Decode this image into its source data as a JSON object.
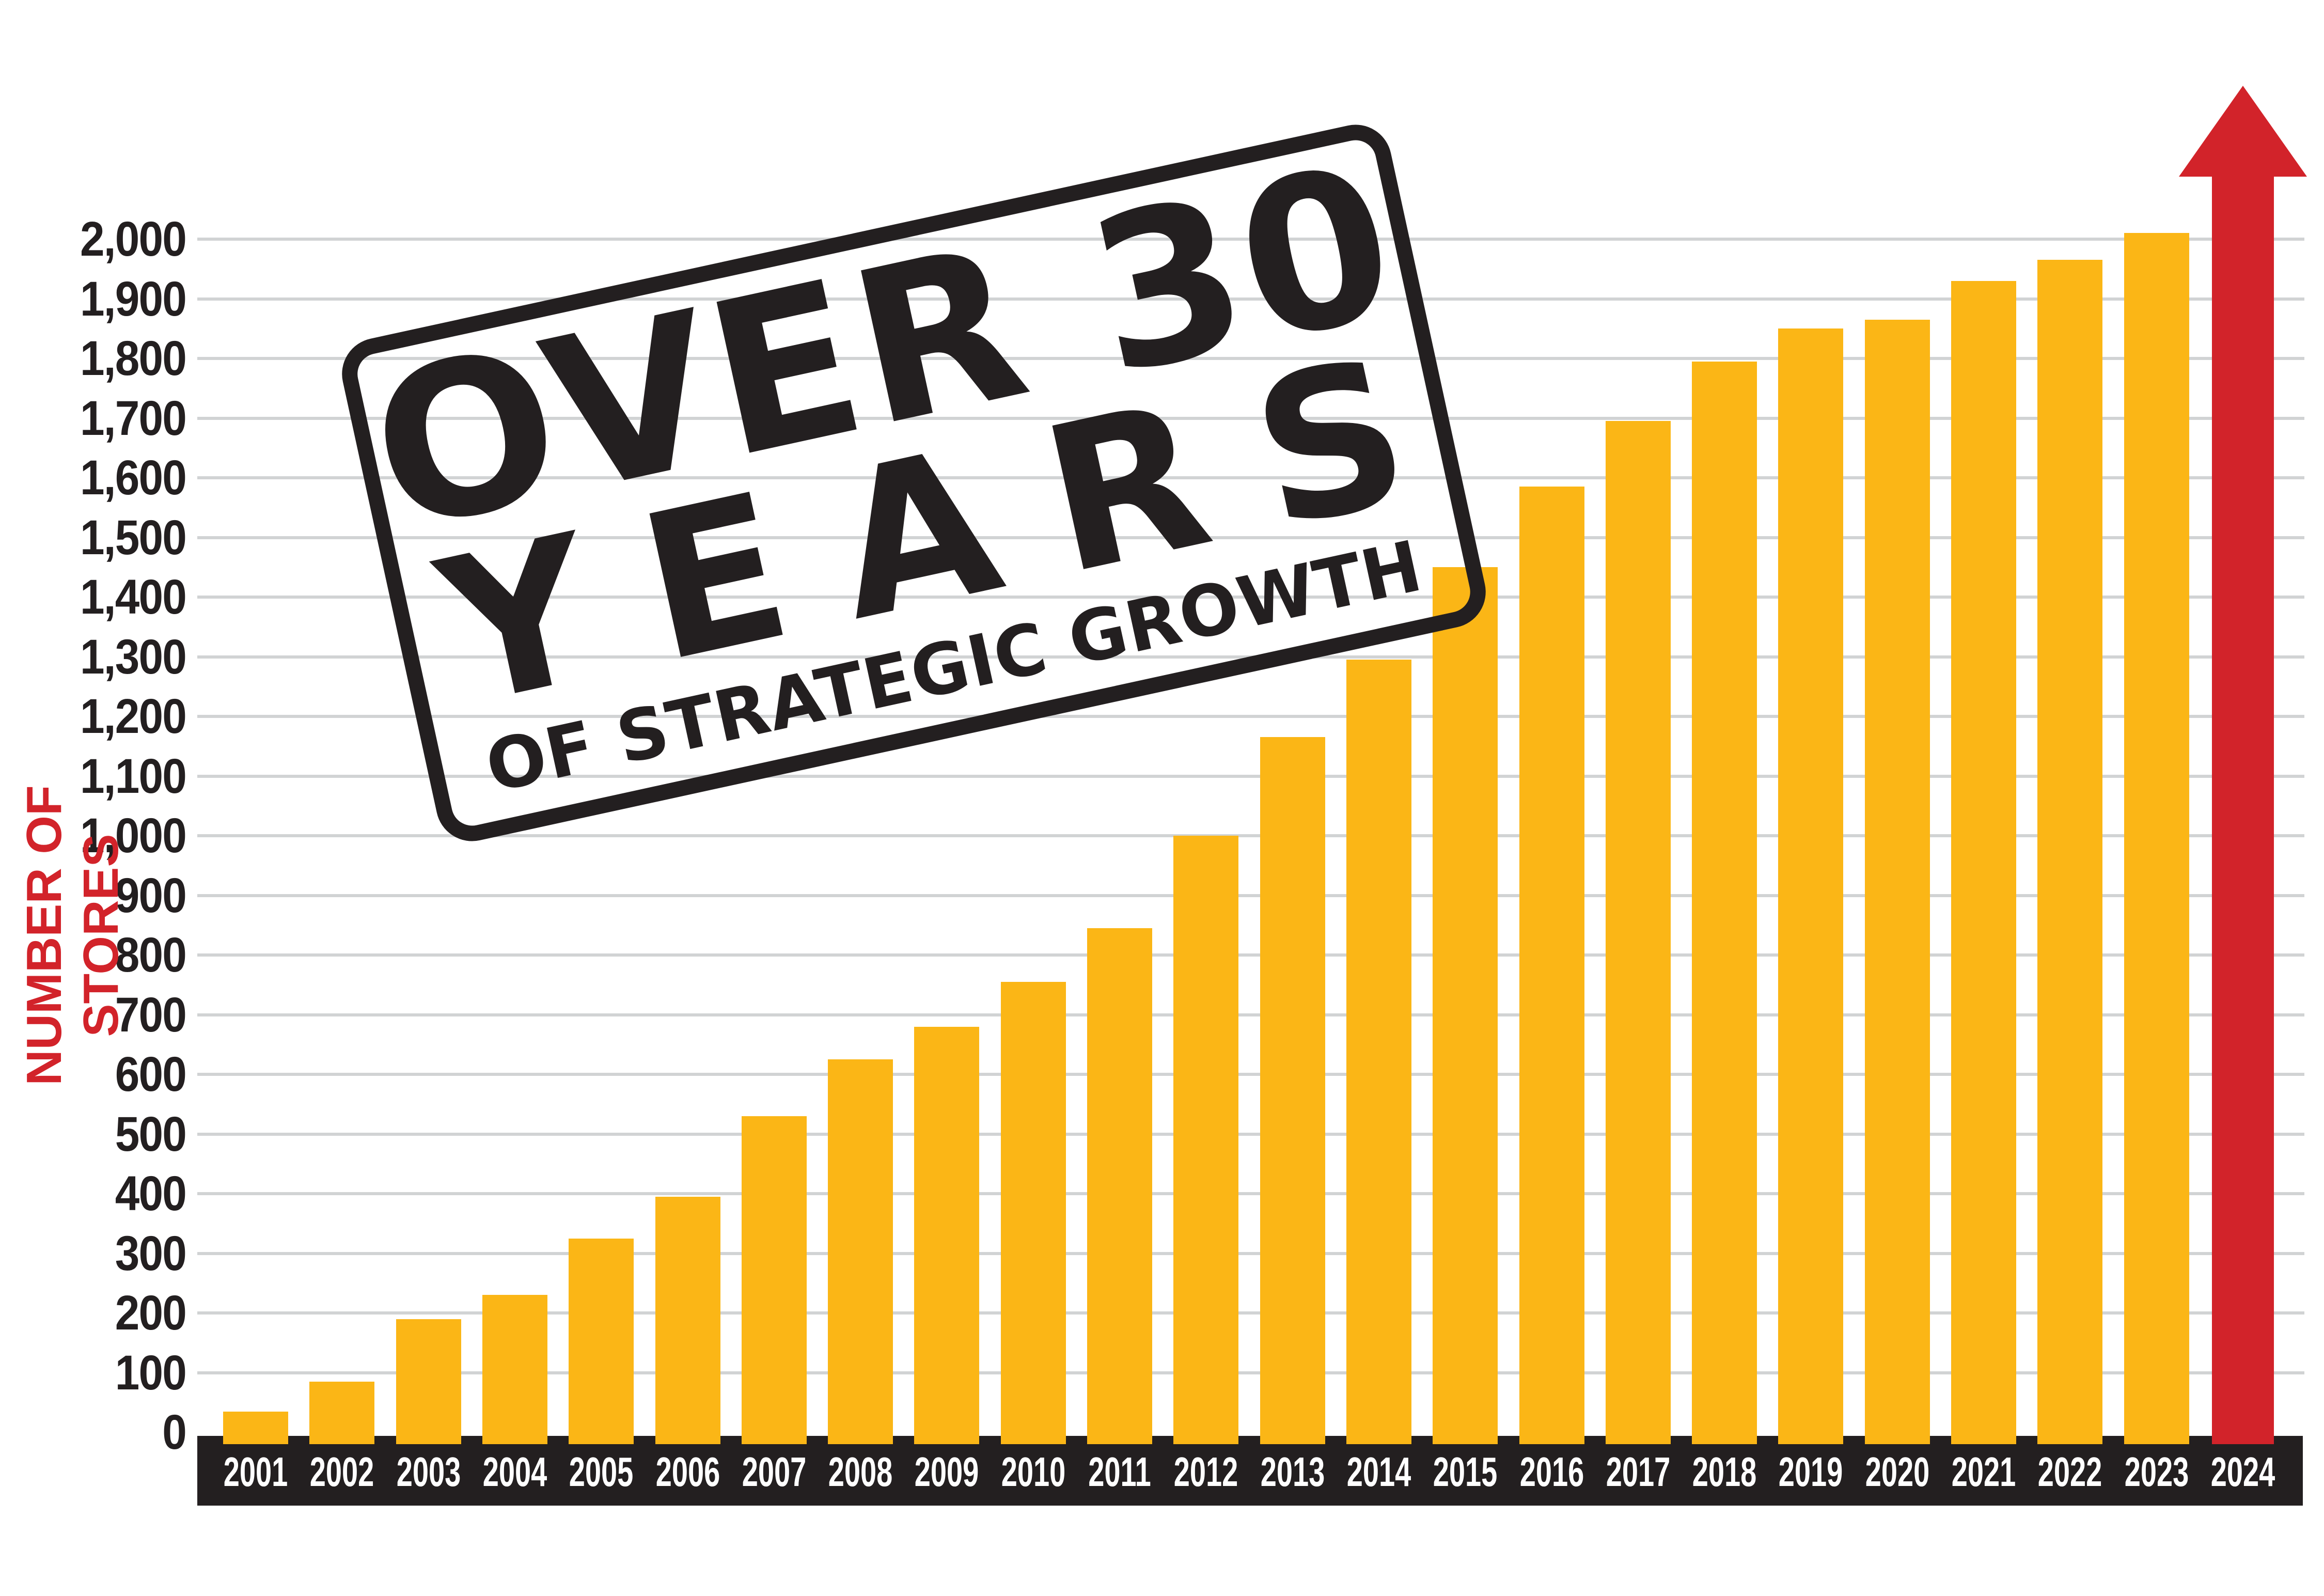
{
  "stamp": {
    "line1": "OVER 30",
    "line2": "YEARS",
    "line3": "OF STRATEGIC GROWTH"
  },
  "y_axis": {
    "label": "NUMBER OF STORES",
    "tick_labels": [
      "0",
      "100",
      "200",
      "300",
      "400",
      "500",
      "600",
      "700",
      "800",
      "900",
      "1,000",
      "1,100",
      "1,200",
      "1,300",
      "1,400",
      "1,500",
      "1,600",
      "1,700",
      "1,800",
      "1,900",
      "2,000"
    ]
  },
  "colors": {
    "bar_yellow": "#FBB616",
    "arrow_red": "#D2232A",
    "axis_black": "#231F20",
    "gridline_gray": "#D1D3D4",
    "background": "#FFFFFF",
    "year_text": "#FFFFFF"
  },
  "chart_data": {
    "type": "bar",
    "title": "OVER 30 YEARS OF STRATEGIC GROWTH",
    "xlabel": "",
    "ylabel": "NUMBER OF STORES",
    "categories": [
      "2001",
      "2002",
      "2003",
      "2004",
      "2005",
      "2006",
      "2007",
      "2008",
      "2009",
      "2010",
      "2011",
      "2012",
      "2013",
      "2014",
      "2015",
      "2016",
      "2017",
      "2018",
      "2019",
      "2020",
      "2021",
      "2022",
      "2023",
      "2024"
    ],
    "values": [
      35,
      85,
      190,
      230,
      325,
      395,
      530,
      625,
      680,
      755,
      845,
      1000,
      1165,
      1295,
      1450,
      1585,
      1695,
      1795,
      1850,
      1865,
      1930,
      1965,
      2010,
      null
    ],
    "arrow_category": "2024",
    "arrow_note": "2024 shown as red up-arrow exceeding chart top",
    "ylim": [
      0,
      2000
    ],
    "ytick_step": 100,
    "grid": true,
    "legend": false,
    "gridlines_horizontal_only": true
  }
}
